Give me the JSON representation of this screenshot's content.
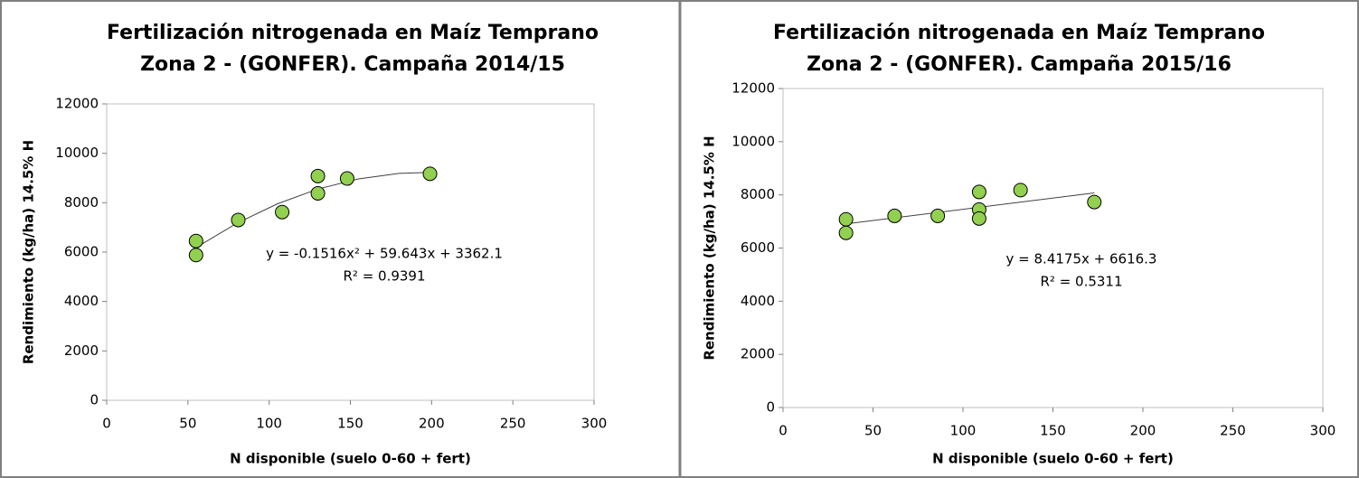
{
  "chart_data": [
    {
      "type": "scatter",
      "title": "Fertilización nitrogenada en Maíz Temprano",
      "subtitle": "Zona 2 - (GONFER). Campaña 2014/15",
      "x_label": "N disponible  (suelo 0-60 + fert)",
      "y_label": "Rendimiento (kg/ha) 14.5% H",
      "series": [
        {
          "name": "Rendimiento",
          "color": "#92d050",
          "x": [
            55,
            55,
            81,
            108,
            130,
            130,
            148,
            199
          ],
          "values": [
            6450,
            5880,
            7300,
            7620,
            9080,
            8380,
            8980,
            9170
          ]
        }
      ],
      "trendline": {
        "equation": "y = -0.1516x² + 59.643x + 3362.1",
        "r2": "R² = 0.9391",
        "x": [
          55,
          80,
          105,
          130,
          155,
          180,
          199
        ],
        "values": [
          6184,
          7163,
          7953,
          8554,
          8965,
          9186,
          9228
        ]
      },
      "xlim": [
        0,
        300
      ],
      "xticks": [
        0,
        50,
        100,
        150,
        200,
        250,
        300
      ],
      "ylim": [
        0,
        12000
      ],
      "yticks": [
        0,
        2000,
        4000,
        6000,
        8000,
        10000,
        12000
      ]
    },
    {
      "type": "scatter",
      "title": "Fertilización nitrogenada en Maíz Temprano",
      "subtitle": "Zona 2 - (GONFER). Campaña 2015/16",
      "x_label": "N disponible  (suelo 0-60 + fert)",
      "y_label": "Rendimiento (kg/ha) 14.5% H",
      "series": [
        {
          "name": "Rendimiento",
          "color": "#92d050",
          "x": [
            35,
            35,
            62,
            86,
            109,
            109,
            109,
            132,
            173
          ],
          "values": [
            7080,
            6570,
            7210,
            7210,
            8110,
            7450,
            7110,
            8180,
            7730
          ]
        }
      ],
      "trendline": {
        "equation": "y = 8.4175x + 6616.3",
        "r2": "R² = 0.5311",
        "x": [
          35,
          173
        ],
        "values": [
          6911,
          8073
        ]
      },
      "xlim": [
        0,
        300
      ],
      "xticks": [
        0,
        50,
        100,
        150,
        200,
        250,
        300
      ],
      "ylim": [
        0,
        12000
      ],
      "yticks": [
        0,
        2000,
        4000,
        6000,
        8000,
        10000,
        12000
      ]
    }
  ]
}
